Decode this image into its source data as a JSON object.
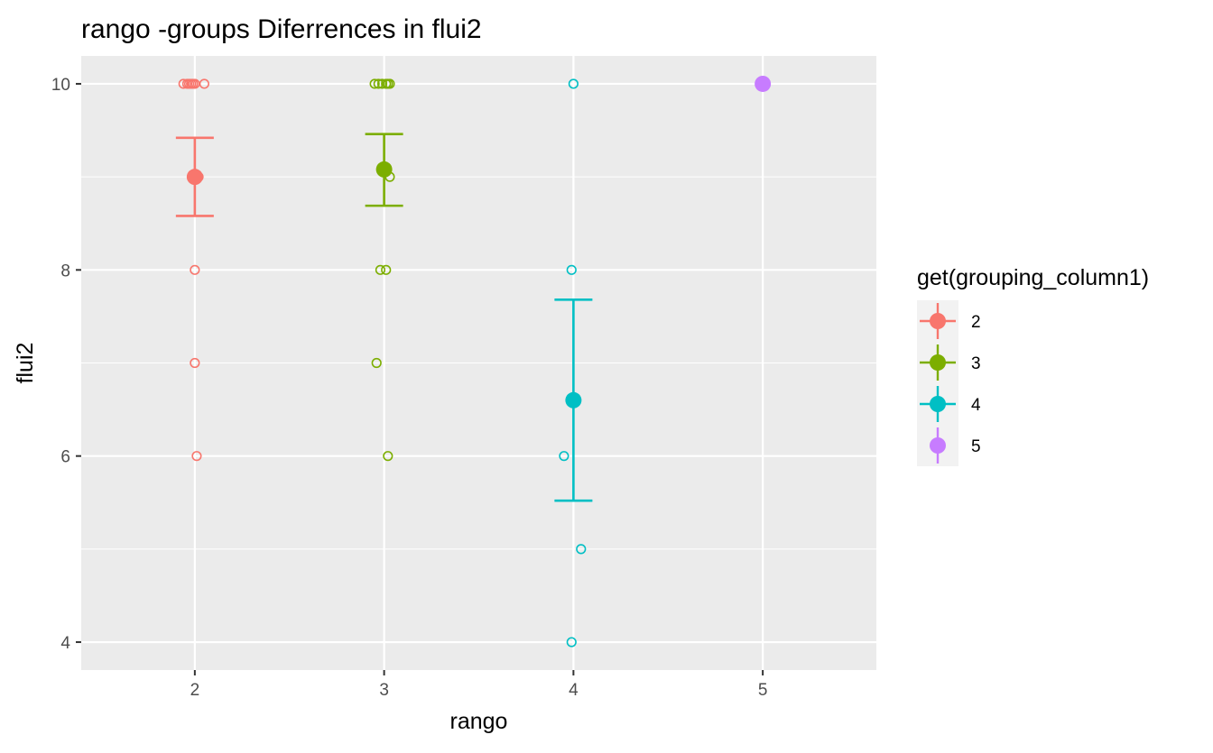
{
  "chart_data": {
    "type": "scatter",
    "title": "rango -groups Diferrences in  flui2",
    "xlabel": "rango",
    "ylabel": "flui2",
    "xlim": [
      1.4,
      5.6
    ],
    "ylim": [
      3.7,
      10.3
    ],
    "x_ticks": [
      "2",
      "3",
      "4",
      "5"
    ],
    "y_ticks": [
      "4",
      "6",
      "8",
      "10"
    ],
    "grid": true,
    "panel_background": "#ebebeb",
    "grid_color": "#ffffff",
    "legend": {
      "title": "get(grouping_column1)",
      "position": "right"
    },
    "series": [
      {
        "name": "2",
        "color": "#F8766D",
        "points": [
          {
            "x": 1.94,
            "y": 10
          },
          {
            "x": 1.96,
            "y": 10
          },
          {
            "x": 1.97,
            "y": 10
          },
          {
            "x": 1.98,
            "y": 10
          },
          {
            "x": 1.99,
            "y": 10
          },
          {
            "x": 2.0,
            "y": 10
          },
          {
            "x": 2.05,
            "y": 10
          },
          {
            "x": 2.0,
            "y": 9
          },
          {
            "x": 2.02,
            "y": 9
          },
          {
            "x": 2.0,
            "y": 8
          },
          {
            "x": 2.0,
            "y": 7
          },
          {
            "x": 2.01,
            "y": 6
          }
        ],
        "mean": 9.0,
        "ci": [
          8.58,
          9.42
        ]
      },
      {
        "name": "3",
        "color": "#7CAE00",
        "points": [
          {
            "x": 2.95,
            "y": 10
          },
          {
            "x": 2.97,
            "y": 10
          },
          {
            "x": 2.99,
            "y": 10
          },
          {
            "x": 3.01,
            "y": 10
          },
          {
            "x": 3.02,
            "y": 10
          },
          {
            "x": 3.03,
            "y": 10
          },
          {
            "x": 3.03,
            "y": 9
          },
          {
            "x": 2.98,
            "y": 8
          },
          {
            "x": 3.01,
            "y": 8
          },
          {
            "x": 2.96,
            "y": 7
          },
          {
            "x": 3.02,
            "y": 6
          }
        ],
        "mean": 9.08,
        "ci": [
          8.69,
          9.46
        ]
      },
      {
        "name": "4",
        "color": "#00BFC4",
        "points": [
          {
            "x": 4.0,
            "y": 10
          },
          {
            "x": 3.99,
            "y": 8
          },
          {
            "x": 3.95,
            "y": 6
          },
          {
            "x": 4.04,
            "y": 5
          },
          {
            "x": 3.99,
            "y": 4
          }
        ],
        "mean": 6.6,
        "ci": [
          5.52,
          7.68
        ]
      },
      {
        "name": "5",
        "color": "#C77CFF",
        "points": [],
        "mean": 10.0,
        "ci": null
      }
    ]
  }
}
